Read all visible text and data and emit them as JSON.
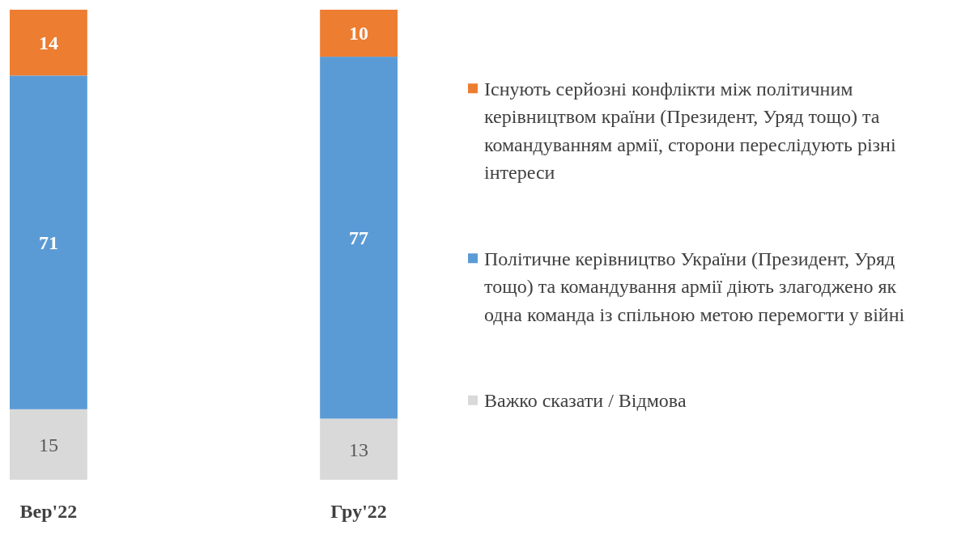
{
  "chart_data": {
    "type": "bar",
    "stacked": true,
    "categories": [
      "Вер'22",
      "Гру'22"
    ],
    "series": [
      {
        "name": "Важко сказати / Відмова",
        "color": "#d9d9d9",
        "values": [
          15,
          13
        ]
      },
      {
        "name": "Політичне керівництво України (Президент, Уряд тощо) та командування армії діють злагоджено як одна команда із спільною метою перемогти у війні",
        "color": "#5b9bd5",
        "values": [
          71,
          77
        ]
      },
      {
        "name": "Існують серйозні конфлікти між політичним керівництвом країни (Президент, Уряд тощо) та командуванням армії, сторони переслідують різні інтереси",
        "color": "#ed7d31",
        "values": [
          14,
          10
        ]
      }
    ],
    "data_labels": true,
    "legend": "right"
  }
}
